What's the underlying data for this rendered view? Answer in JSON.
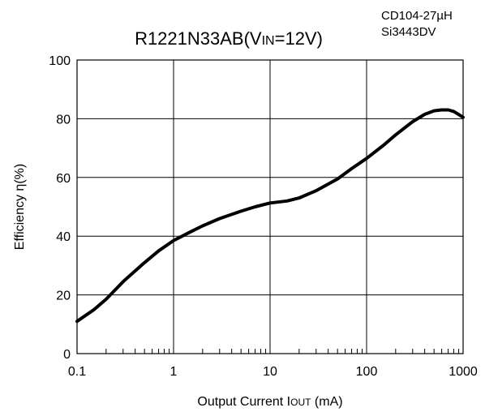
{
  "chart_data": {
    "type": "line",
    "title_main": "R1221N33AB(V",
    "title_sub": "IN",
    "title_tail": "=12V)",
    "annotations": [
      "CD104-27µH",
      "Si3443DV"
    ],
    "xlabel_main": "Output Current I",
    "xlabel_sub": "OUT",
    "xlabel_tail": " (mA)",
    "ylabel": "Efficiency η(%)",
    "x_scale": "log",
    "xlim": [
      0.1,
      1000
    ],
    "ylim": [
      0,
      100
    ],
    "x_ticks": [
      0.1,
      1,
      10,
      100,
      1000
    ],
    "x_tick_labels": [
      "0.1",
      "1",
      "10",
      "100",
      "1000"
    ],
    "y_ticks": [
      0,
      20,
      40,
      60,
      80,
      100
    ],
    "y_tick_labels": [
      "0",
      "20",
      "40",
      "60",
      "80",
      "100"
    ],
    "grid": true,
    "series": [
      {
        "x": [
          0.1,
          0.15,
          0.2,
          0.3,
          0.5,
          0.7,
          1,
          1.5,
          2,
          3,
          5,
          7,
          10,
          15,
          20,
          30,
          50,
          70,
          100,
          150,
          200,
          300,
          400,
          500,
          600,
          700,
          800,
          1000
        ],
        "y": [
          11,
          15,
          18.5,
          24.5,
          31,
          35,
          38.5,
          41.5,
          43.5,
          46,
          48.5,
          50,
          51.3,
          52,
          53,
          55.5,
          59.5,
          63,
          66.5,
          71,
          74.5,
          79,
          81.5,
          82.7,
          83,
          83,
          82.5,
          80.5
        ]
      }
    ]
  }
}
